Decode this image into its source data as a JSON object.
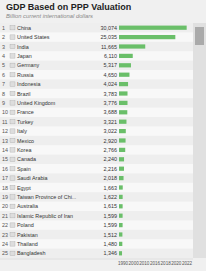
{
  "chart_data": {
    "type": "bar",
    "orientation": "horizontal",
    "title": "GDP Based on PPP Valuation",
    "subtitle": "Billion current international dollars",
    "categories": [
      "China",
      "United States",
      "India",
      "Japan",
      "Germany",
      "Russia",
      "Indonesia",
      "Brazil",
      "United Kingdom",
      "France",
      "Turkey",
      "Italy",
      "Mexico",
      "Korea",
      "Canada",
      "Spain",
      "Saudi Arabia",
      "Egypt",
      "Taiwan Province of Chi...",
      "Australia",
      "Islamic Republic of Iran",
      "Poland",
      "Pakistan",
      "Thailand",
      "Bangladesh"
    ],
    "ranks": [
      1,
      2,
      3,
      4,
      5,
      6,
      7,
      8,
      9,
      10,
      11,
      12,
      13,
      14,
      15,
      16,
      17,
      18,
      19,
      20,
      21,
      22,
      23,
      24,
      25
    ],
    "values": [
      30074,
      25035,
      11665,
      6110,
      5317,
      4650,
      4024,
      3783,
      3776,
      3688,
      3321,
      3022,
      2920,
      2766,
      2240,
      2216,
      2018,
      1663,
      1622,
      1615,
      1599,
      1599,
      1512,
      1480,
      1346
    ],
    "value_labels": [
      "30,074",
      "25,035",
      "11,665",
      "6,110",
      "5,317",
      "4,650",
      "4,024",
      "3,783",
      "3,776",
      "3,688",
      "3,321",
      "3,022",
      "2,920",
      "2,766",
      "2,240",
      "2,216",
      "2,018",
      "1,663",
      "1,622",
      "1,615",
      "1,599",
      "1,599",
      "1,512",
      "1,480",
      "1,346"
    ],
    "data_labels": true,
    "color": "#6abf69",
    "xlim": [
      0,
      32000
    ],
    "tick_labels": false,
    "grid": false,
    "annotations": [
      "1990",
      "2000",
      "2010",
      "2016",
      "2018",
      "2020",
      "2022"
    ]
  }
}
